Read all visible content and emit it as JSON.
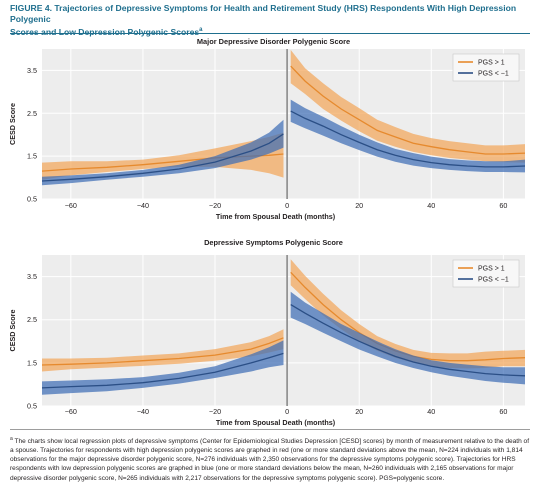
{
  "figure": {
    "label": "FIGURE 4.",
    "title_line1": "FIGURE 4.  Trajectories of Depressive Symptoms for Health and Retirement Study (HRS) Respondents With High Depression Polygenic",
    "title_line2": "Scores and Low Depression Polygenic Scores",
    "title_marker": "a"
  },
  "footnote": {
    "marker": "a",
    "text": "The charts show local regression plots of depressive symptoms (Center for Epidemiological Studies Depression [CESD] scores) by month of measurement relative to the death of a spouse. Trajectories for respondents with high depression polygenic scores are graphed in red (one or more standard deviations above the mean, N=224 individuals with 1,814 observations for the major depressive disorder polygenic score, N=276 individuals with 2,350 observations for the depressive symptoms polygenic score). Trajectories for HRS respondents with low depression polygenic scores are graphed in blue (one or more standard deviations below the mean, N=260 individuals with 2,165 observations for major depressive disorder polygenic score, N=265 individuals with 2,217 observations for the depressive symptoms polygenic score). PGS=polygenic score."
  },
  "colors": {
    "high_line": "#e68a2e",
    "high_band": "#f2a65a",
    "low_line": "#2b4f86",
    "low_band": "#3e6db5",
    "title": "#1f6f8e",
    "panel_bg": "#ededed",
    "grid": "#ffffff",
    "divider": "#8a8a8a"
  },
  "chart_data": [
    {
      "type": "line",
      "title": "Major Depressive Disorder Polygenic Score",
      "xlabel": "Time from Spousal Death (months)",
      "ylabel": "CESD Score",
      "xlim": [
        -68,
        66
      ],
      "ylim": [
        0.5,
        4.0
      ],
      "xticks": [
        -60,
        -40,
        -20,
        0,
        20,
        40,
        60
      ],
      "xtick_labels": [
        "−60",
        "−40",
        "−20",
        "0",
        "20",
        "40",
        "60"
      ],
      "yticks": [
        0.5,
        1.5,
        2.5,
        3.5
      ],
      "ytick_labels": [
        "0.5",
        "1.5",
        "2.5",
        "3.5"
      ],
      "grid": true,
      "legend_position": "top-right",
      "series": [
        {
          "name": "PGS > 1",
          "color_key": "high",
          "before": {
            "x": [
              -68,
              -60,
              -50,
              -40,
              -30,
              -20,
              -10,
              -5,
              -1
            ],
            "y": [
              1.15,
              1.2,
              1.24,
              1.3,
              1.38,
              1.46,
              1.5,
              1.52,
              1.55
            ],
            "lower": [
              0.95,
              1.05,
              1.13,
              1.2,
              1.25,
              1.25,
              1.18,
              1.1,
              1.0
            ],
            "upper": [
              1.35,
              1.38,
              1.38,
              1.42,
              1.52,
              1.68,
              1.85,
              1.95,
              2.05
            ]
          },
          "after": {
            "x": [
              1,
              5,
              10,
              15,
              20,
              25,
              30,
              35,
              40,
              45,
              50,
              55,
              60,
              66
            ],
            "y": [
              3.6,
              3.25,
              2.9,
              2.6,
              2.35,
              2.1,
              1.95,
              1.8,
              1.72,
              1.65,
              1.6,
              1.55,
              1.55,
              1.57
            ],
            "lower": [
              3.2,
              2.95,
              2.6,
              2.33,
              2.08,
              1.86,
              1.72,
              1.6,
              1.52,
              1.46,
              1.42,
              1.38,
              1.36,
              1.35
            ],
            "upper": [
              3.98,
              3.55,
              3.2,
              2.88,
              2.62,
              2.35,
              2.18,
              2.02,
              1.92,
              1.85,
              1.8,
              1.75,
              1.75,
              1.78
            ]
          }
        },
        {
          "name": "PGS < −1",
          "color_key": "low",
          "before": {
            "x": [
              -68,
              -60,
              -50,
              -40,
              -30,
              -20,
              -10,
              -5,
              -1
            ],
            "y": [
              0.92,
              0.96,
              1.02,
              1.1,
              1.2,
              1.36,
              1.62,
              1.8,
              2.02
            ],
            "lower": [
              0.82,
              0.87,
              0.95,
              1.02,
              1.1,
              1.22,
              1.42,
              1.56,
              1.7
            ],
            "upper": [
              1.02,
              1.05,
              1.1,
              1.18,
              1.3,
              1.5,
              1.82,
              2.05,
              2.35
            ]
          },
          "after": {
            "x": [
              1,
              5,
              10,
              15,
              20,
              25,
              30,
              35,
              40,
              45,
              50,
              55,
              60,
              66
            ],
            "y": [
              2.55,
              2.38,
              2.2,
              2.0,
              1.82,
              1.65,
              1.52,
              1.42,
              1.35,
              1.3,
              1.27,
              1.25,
              1.25,
              1.27
            ],
            "lower": [
              2.3,
              2.15,
              1.98,
              1.8,
              1.64,
              1.49,
              1.37,
              1.28,
              1.22,
              1.18,
              1.15,
              1.13,
              1.13,
              1.12
            ],
            "upper": [
              2.82,
              2.62,
              2.42,
              2.2,
              2.0,
              1.82,
              1.67,
              1.57,
              1.49,
              1.43,
              1.4,
              1.38,
              1.38,
              1.42
            ]
          }
        }
      ]
    },
    {
      "type": "line",
      "title": "Depressive Symptoms Polygenic Score",
      "xlabel": "Time from Spousal Death (months)",
      "ylabel": "CESD Score",
      "xlim": [
        -68,
        66
      ],
      "ylim": [
        0.5,
        4.0
      ],
      "xticks": [
        -60,
        -40,
        -20,
        0,
        20,
        40,
        60
      ],
      "xtick_labels": [
        "−60",
        "−40",
        "−20",
        "0",
        "20",
        "40",
        "60"
      ],
      "yticks": [
        0.5,
        1.5,
        2.5,
        3.5
      ],
      "ytick_labels": [
        "0.5",
        "1.5",
        "2.5",
        "3.5"
      ],
      "grid": true,
      "legend_position": "top-right",
      "series": [
        {
          "name": "PGS > 1",
          "color_key": "high",
          "before": {
            "x": [
              -68,
              -60,
              -50,
              -40,
              -30,
              -20,
              -10,
              -5,
              -1
            ],
            "y": [
              1.45,
              1.47,
              1.5,
              1.55,
              1.6,
              1.68,
              1.82,
              1.95,
              2.08
            ],
            "lower": [
              1.3,
              1.35,
              1.39,
              1.43,
              1.48,
              1.55,
              1.65,
              1.74,
              1.82
            ],
            "upper": [
              1.6,
              1.6,
              1.62,
              1.67,
              1.72,
              1.82,
              1.98,
              2.12,
              2.28
            ]
          },
          "after": {
            "x": [
              1,
              5,
              10,
              15,
              20,
              25,
              30,
              35,
              40,
              45,
              50,
              55,
              60,
              66
            ],
            "y": [
              3.6,
              3.25,
              2.85,
              2.5,
              2.2,
              1.95,
              1.78,
              1.65,
              1.58,
              1.55,
              1.55,
              1.57,
              1.6,
              1.62
            ],
            "lower": [
              3.3,
              2.98,
              2.6,
              2.28,
              2.0,
              1.78,
              1.62,
              1.5,
              1.42,
              1.38,
              1.37,
              1.38,
              1.42,
              1.42
            ],
            "upper": [
              3.9,
              3.52,
              3.1,
              2.72,
              2.4,
              2.12,
              1.94,
              1.8,
              1.73,
              1.72,
              1.72,
              1.76,
              1.78,
              1.8
            ]
          }
        },
        {
          "name": "PGS < −1",
          "color_key": "low",
          "before": {
            "x": [
              -68,
              -60,
              -50,
              -40,
              -30,
              -20,
              -10,
              -5,
              -1
            ],
            "y": [
              0.92,
              0.95,
              0.98,
              1.04,
              1.14,
              1.28,
              1.5,
              1.62,
              1.72
            ],
            "lower": [
              0.76,
              0.8,
              0.84,
              0.92,
              1.02,
              1.15,
              1.3,
              1.4,
              1.45
            ],
            "upper": [
              1.07,
              1.09,
              1.12,
              1.17,
              1.27,
              1.42,
              1.7,
              1.86,
              2.02
            ]
          },
          "after": {
            "x": [
              1,
              5,
              10,
              15,
              20,
              25,
              30,
              35,
              40,
              45,
              50,
              55,
              60,
              66
            ],
            "y": [
              2.85,
              2.65,
              2.42,
              2.2,
              2.0,
              1.82,
              1.65,
              1.52,
              1.42,
              1.35,
              1.3,
              1.25,
              1.22,
              1.2
            ],
            "lower": [
              2.55,
              2.4,
              2.2,
              2.0,
              1.81,
              1.65,
              1.5,
              1.38,
              1.28,
              1.2,
              1.14,
              1.08,
              1.04,
              1.0
            ],
            "upper": [
              3.15,
              2.9,
              2.65,
              2.4,
              2.2,
              2.0,
              1.82,
              1.67,
              1.56,
              1.5,
              1.46,
              1.42,
              1.4,
              1.4
            ]
          }
        }
      ]
    }
  ]
}
